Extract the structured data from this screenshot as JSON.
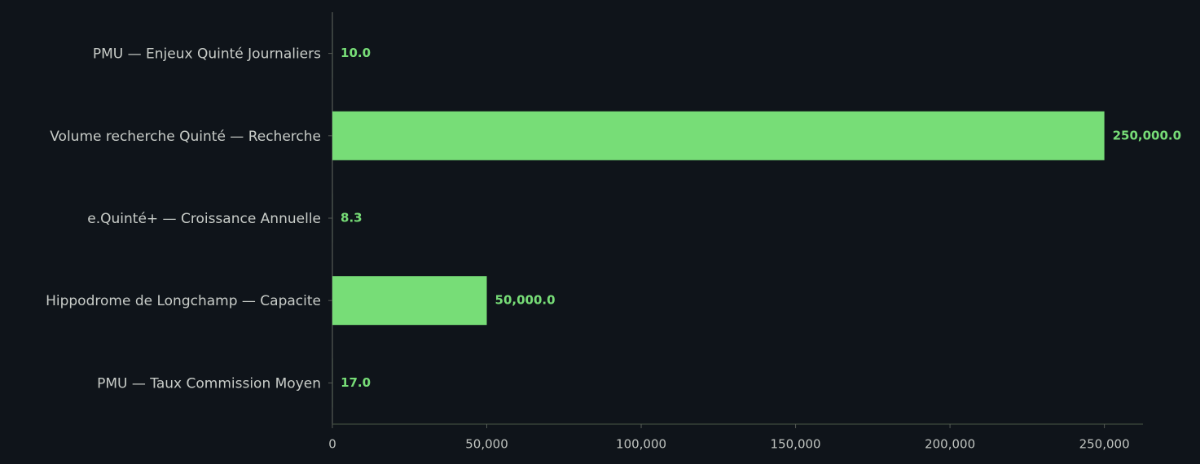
{
  "chart_data": {
    "type": "barh",
    "categories": [
      "PMU — Enjeux Quinté Journaliers",
      "Volume recherche Quinté — Recherche",
      "e.Quinté+ — Croissance Annuelle",
      "Hippodrome de Longchamp — Capacite",
      "PMU — Taux Commission Moyen"
    ],
    "values": [
      10.0,
      250000.0,
      8.3,
      50000.0,
      17.0
    ],
    "value_labels": [
      "10.0",
      "250,000.0",
      "8.3",
      "50,000.0",
      "17.0"
    ],
    "color": "#77dd77",
    "xlim": [
      0,
      262500
    ],
    "xticks": [
      0,
      {
        "value": 50000,
        "label": "50,000"
      },
      {
        "value": 100000,
        "label": "100,000"
      },
      {
        "value": 150000,
        "label": "150,000"
      },
      {
        "value": 200000,
        "label": "200,000"
      },
      {
        "value": 250000,
        "label": "250,000"
      }
    ],
    "grid": false
  }
}
